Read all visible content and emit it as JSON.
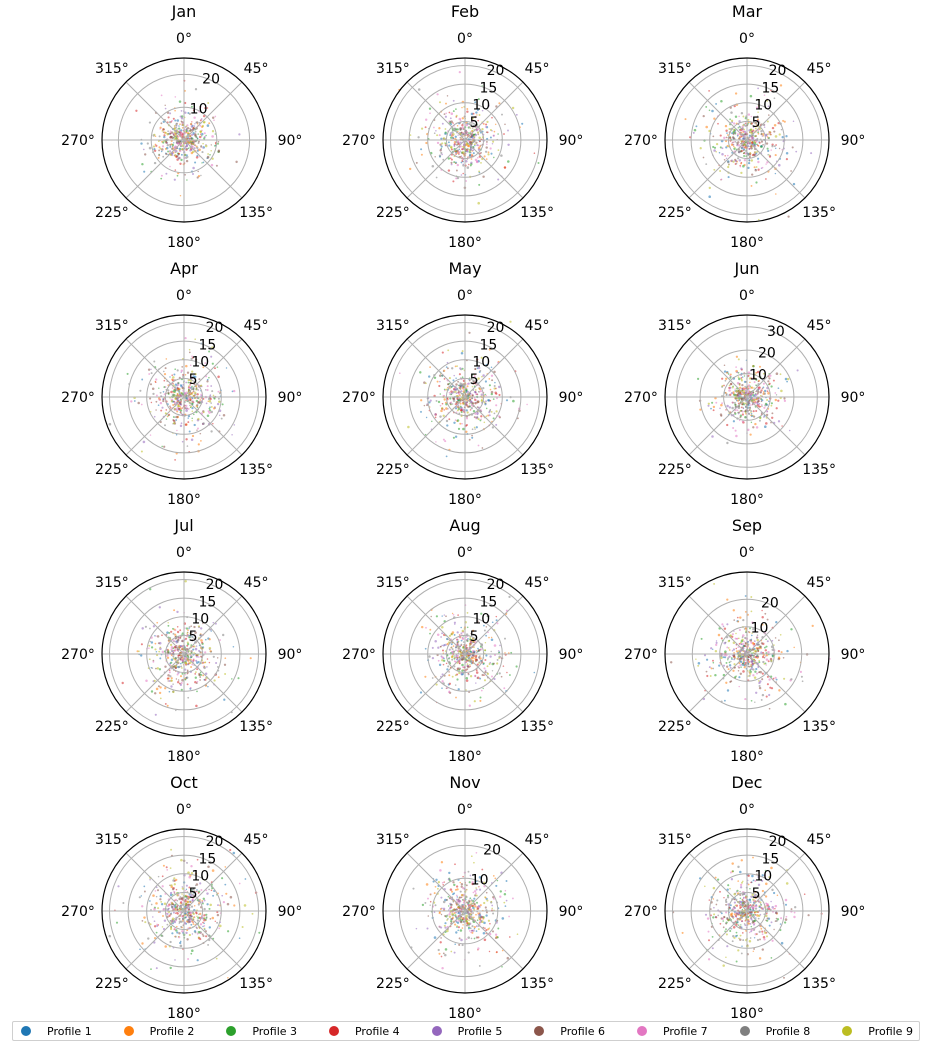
{
  "chart_data": {
    "type": "scatter",
    "projection": "polar",
    "theta_zero": "N",
    "theta_direction": "clockwise",
    "angle_tick_labels": [
      "0°",
      "45°",
      "90°",
      "135°",
      "180°",
      "225°",
      "270°",
      "315°"
    ],
    "legend_position": "bottom",
    "series": [
      {
        "name": "Profile 1",
        "color": "#1f77b4"
      },
      {
        "name": "Profile 2",
        "color": "#ff7f0e"
      },
      {
        "name": "Profile 3",
        "color": "#2ca02c"
      },
      {
        "name": "Profile 4",
        "color": "#d62728"
      },
      {
        "name": "Profile 5",
        "color": "#9467bd"
      },
      {
        "name": "Profile 6",
        "color": "#8c564b"
      },
      {
        "name": "Profile 7",
        "color": "#e377c2"
      },
      {
        "name": "Profile 8",
        "color": "#7f7f7f"
      },
      {
        "name": "Profile 9",
        "color": "#bcbd22"
      }
    ],
    "panels": [
      {
        "title": "Jan",
        "rmax": 25,
        "radial_ticks": [
          10,
          20
        ],
        "spread": 0.42
      },
      {
        "title": "Feb",
        "rmax": 22,
        "radial_ticks": [
          5,
          10,
          15,
          20
        ],
        "spread": 0.5
      },
      {
        "title": "Mar",
        "rmax": 22,
        "radial_ticks": [
          5,
          10,
          15,
          20
        ],
        "spread": 0.5
      },
      {
        "title": "Apr",
        "rmax": 22,
        "radial_ticks": [
          5,
          10,
          15,
          20
        ],
        "spread": 0.5
      },
      {
        "title": "May",
        "rmax": 22,
        "radial_ticks": [
          5,
          10,
          15,
          20
        ],
        "spread": 0.52
      },
      {
        "title": "Jun",
        "rmax": 35,
        "radial_ticks": [
          10,
          20,
          30
        ],
        "spread": 0.38
      },
      {
        "title": "Jul",
        "rmax": 22,
        "radial_ticks": [
          5,
          10,
          15,
          20
        ],
        "spread": 0.52
      },
      {
        "title": "Aug",
        "rmax": 22,
        "radial_ticks": [
          5,
          10,
          15,
          20
        ],
        "spread": 0.48
      },
      {
        "title": "Sep",
        "rmax": 30,
        "radial_ticks": [
          10,
          20
        ],
        "spread": 0.5
      },
      {
        "title": "Oct",
        "rmax": 22,
        "radial_ticks": [
          5,
          10,
          15,
          20
        ],
        "spread": 0.55
      },
      {
        "title": "Nov",
        "rmax": 25,
        "radial_ticks": [
          10,
          20
        ],
        "spread": 0.5
      },
      {
        "title": "Dec",
        "rmax": 22,
        "radial_ticks": [
          5,
          10,
          15,
          20
        ],
        "spread": 0.52
      }
    ]
  }
}
